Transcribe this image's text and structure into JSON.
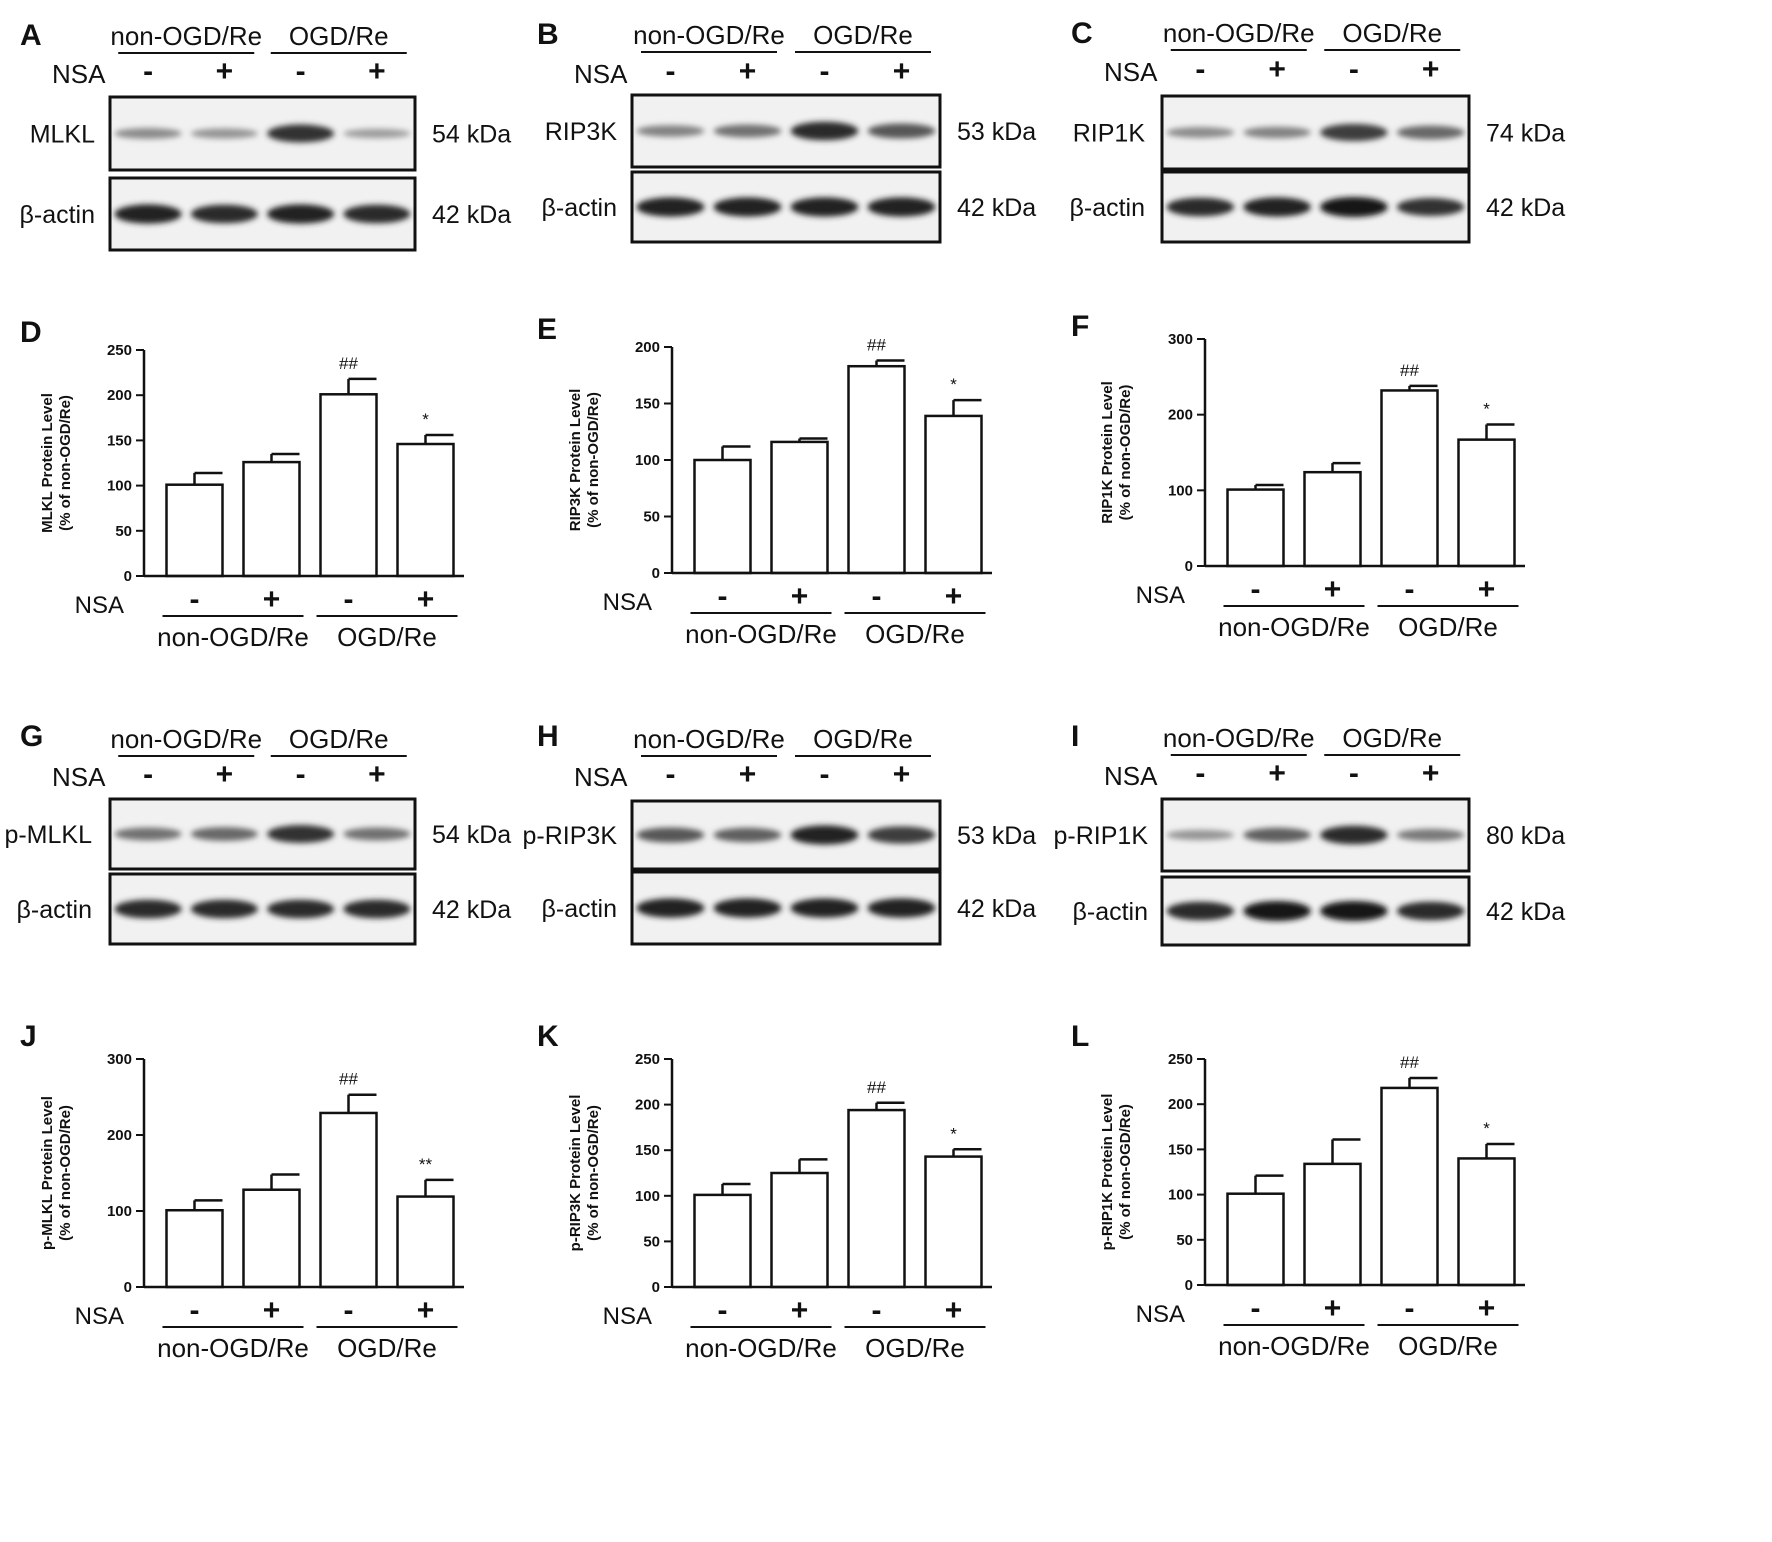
{
  "blots": [
    {
      "panel": "A",
      "group_labels": [
        "non-OGD/Re",
        "OGD/Re"
      ],
      "nsa_label": "NSA",
      "signs": [
        "-",
        "+",
        "-",
        "+"
      ],
      "rows": [
        {
          "protein": "MLKL",
          "kda": "54 kDa",
          "bands": [
            0.35,
            0.3,
            0.85,
            0.25
          ]
        },
        {
          "protein": "β-actin",
          "kda": "42 kDa",
          "bands": [
            0.95,
            0.9,
            0.95,
            0.9
          ]
        }
      ]
    },
    {
      "panel": "B",
      "group_labels": [
        "non-OGD/Re",
        "OGD/Re"
      ],
      "nsa_label": "NSA",
      "signs": [
        "-",
        "+",
        "-",
        "+"
      ],
      "rows": [
        {
          "protein": "RIP3K",
          "kda": "53 kDa",
          "bands": [
            0.4,
            0.5,
            0.9,
            0.65
          ]
        },
        {
          "protein": "β-actin",
          "kda": "42 kDa",
          "bands": [
            0.95,
            0.95,
            0.95,
            0.95
          ]
        }
      ]
    },
    {
      "panel": "C",
      "group_labels": [
        "non-OGD/Re",
        "OGD/Re"
      ],
      "nsa_label": "NSA",
      "signs": [
        "-",
        "+",
        "-",
        "+"
      ],
      "rows": [
        {
          "protein": "RIP1K",
          "kda": "74 kDa",
          "bands": [
            0.35,
            0.4,
            0.8,
            0.55
          ]
        },
        {
          "protein": "β-actin",
          "kda": "42 kDa",
          "bands": [
            0.9,
            0.95,
            1.0,
            0.85
          ]
        }
      ]
    },
    {
      "panel": "G",
      "group_labels": [
        "non-OGD/Re",
        "OGD/Re"
      ],
      "nsa_label": "NSA",
      "signs": [
        "-",
        "+",
        "-",
        "+"
      ],
      "rows": [
        {
          "protein": "p-MLKL",
          "kda": "54 kDa",
          "bands": [
            0.5,
            0.55,
            0.85,
            0.5
          ]
        },
        {
          "protein": "β-actin",
          "kda": "42 kDa",
          "bands": [
            0.9,
            0.9,
            0.9,
            0.9
          ]
        }
      ]
    },
    {
      "panel": "H",
      "group_labels": [
        "non-OGD/Re",
        "OGD/Re"
      ],
      "nsa_label": "NSA",
      "signs": [
        "-",
        "+",
        "-",
        "+"
      ],
      "rows": [
        {
          "protein": "p-RIP3K",
          "kda": "53 kDa",
          "bands": [
            0.65,
            0.6,
            0.95,
            0.8
          ]
        },
        {
          "protein": "β-actin",
          "kda": "42 kDa",
          "bands": [
            0.95,
            0.95,
            0.95,
            0.95
          ]
        }
      ]
    },
    {
      "panel": "I",
      "group_labels": [
        "non-OGD/Re",
        "OGD/Re"
      ],
      "nsa_label": "NSA",
      "signs": [
        "-",
        "+",
        "-",
        "+"
      ],
      "rows": [
        {
          "protein": "p-RIP1K",
          "kda": "80 kDa",
          "bands": [
            0.3,
            0.6,
            0.9,
            0.45
          ]
        },
        {
          "protein": "β-actin",
          "kda": "42 kDa",
          "bands": [
            0.9,
            1.0,
            1.0,
            0.9
          ]
        }
      ]
    }
  ],
  "chart_data": [
    {
      "panel": "D",
      "type": "bar",
      "ylabel": "MLKL Protein Level\n(% of non-OGD/Re)",
      "ylim": [
        0,
        250
      ],
      "yticks": [
        0,
        50,
        100,
        150,
        200,
        250
      ],
      "values": [
        101,
        126,
        201,
        146
      ],
      "errors": [
        13,
        9,
        17,
        10
      ],
      "annotations": [
        "",
        "",
        "##",
        "*"
      ],
      "nsa_label": "NSA",
      "signs": [
        "-",
        "+",
        "-",
        "+"
      ],
      "group_labels": [
        "non-OGD/Re",
        "OGD/Re"
      ]
    },
    {
      "panel": "E",
      "type": "bar",
      "ylabel": "RIP3K Protein Level\n(% of non-OGD/Re)",
      "ylim": [
        0,
        200
      ],
      "yticks": [
        0,
        50,
        100,
        150,
        200
      ],
      "values": [
        100,
        116,
        183,
        139
      ],
      "errors": [
        12,
        3,
        5,
        14
      ],
      "annotations": [
        "",
        "",
        "##",
        "*"
      ],
      "nsa_label": "NSA",
      "signs": [
        "-",
        "+",
        "-",
        "+"
      ],
      "group_labels": [
        "non-OGD/Re",
        "OGD/Re"
      ]
    },
    {
      "panel": "F",
      "type": "bar",
      "ylabel": "RIP1K Protein Level\n(% of non-OGD/Re)",
      "ylim": [
        0,
        300
      ],
      "yticks": [
        0,
        100,
        200,
        300
      ],
      "values": [
        101,
        124,
        232,
        167
      ],
      "errors": [
        6,
        12,
        6,
        20
      ],
      "annotations": [
        "",
        "",
        "##",
        "*"
      ],
      "nsa_label": "NSA",
      "signs": [
        "-",
        "+",
        "-",
        "+"
      ],
      "group_labels": [
        "non-OGD/Re",
        "OGD/Re"
      ]
    },
    {
      "panel": "J",
      "type": "bar",
      "ylabel": "p-MLKL Protein Level\n(% of non-OGD/Re)",
      "ylim": [
        0,
        300
      ],
      "yticks": [
        0,
        100,
        200,
        300
      ],
      "values": [
        101,
        128,
        229,
        119
      ],
      "errors": [
        13,
        20,
        24,
        22
      ],
      "annotations": [
        "",
        "",
        "##",
        "**"
      ],
      "nsa_label": "NSA",
      "signs": [
        "-",
        "+",
        "-",
        "+"
      ],
      "group_labels": [
        "non-OGD/Re",
        "OGD/Re"
      ]
    },
    {
      "panel": "K",
      "type": "bar",
      "ylabel": "p-RIP3K Protein Level\n(% of non-OGD/Re)",
      "ylim": [
        0,
        250
      ],
      "yticks": [
        0,
        50,
        100,
        150,
        200,
        250
      ],
      "values": [
        101,
        125,
        194,
        143
      ],
      "errors": [
        12,
        15,
        8,
        8
      ],
      "annotations": [
        "",
        "",
        "##",
        "*"
      ],
      "nsa_label": "NSA",
      "signs": [
        "-",
        "+",
        "-",
        "+"
      ],
      "group_labels": [
        "non-OGD/Re",
        "OGD/Re"
      ]
    },
    {
      "panel": "L",
      "type": "bar",
      "ylabel": "p-RIP1K Protein Level\n(% of non-OGD/Re)",
      "ylim": [
        0,
        250
      ],
      "yticks": [
        0,
        50,
        100,
        150,
        200,
        250
      ],
      "values": [
        101,
        134,
        218,
        140
      ],
      "errors": [
        20,
        27,
        11,
        16
      ],
      "annotations": [
        "",
        "",
        "##",
        "*"
      ],
      "nsa_label": "NSA",
      "signs": [
        "-",
        "+",
        "-",
        "+"
      ],
      "group_labels": [
        "non-OGD/Re",
        "OGD/Re"
      ]
    }
  ]
}
